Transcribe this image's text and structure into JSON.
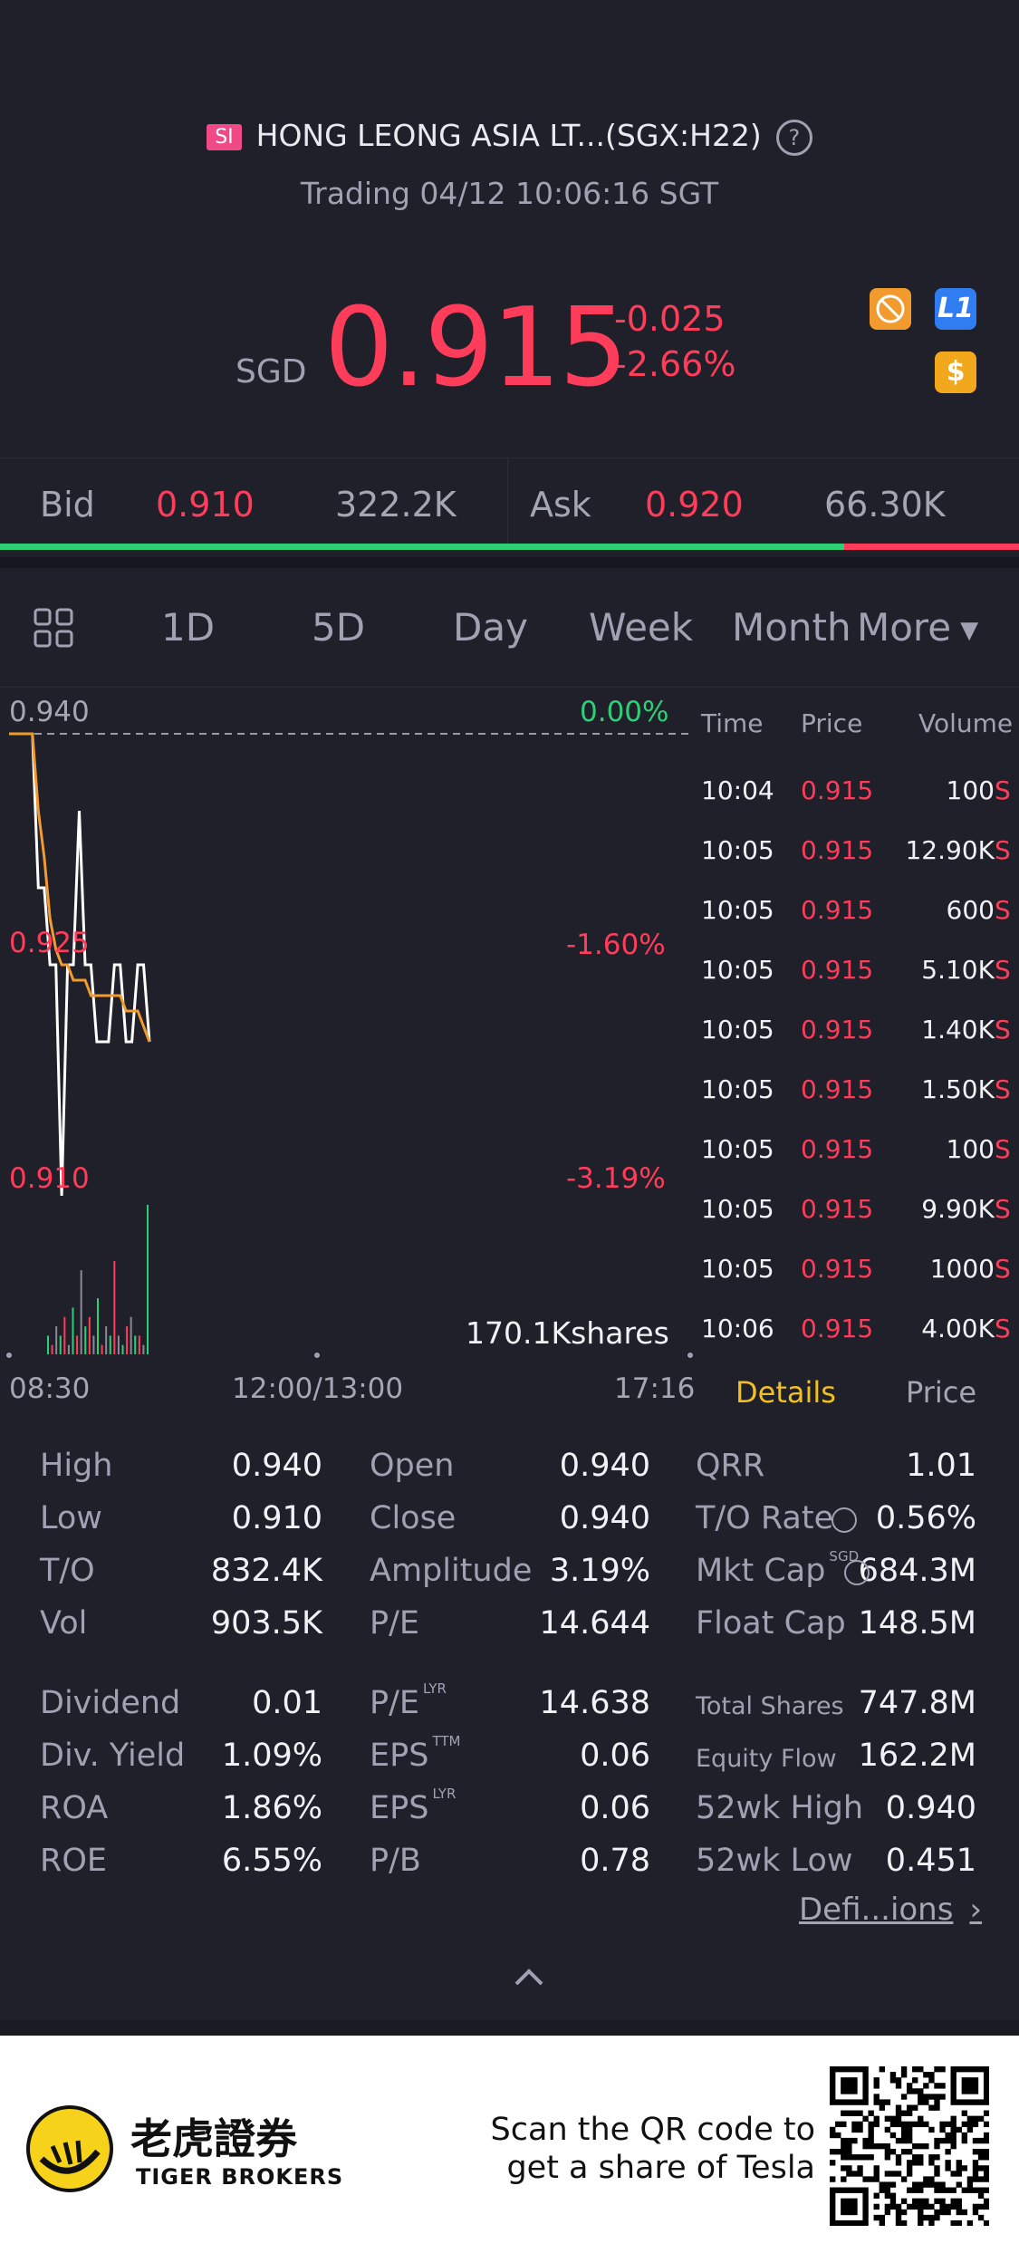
{
  "header": {
    "badge": "SI",
    "title": "HONG LEONG ASIA LT...(SGX:H22)",
    "help": "?",
    "status": "Trading 04/12 10:06:16 SGT"
  },
  "quote": {
    "currency": "SGD",
    "price": "0.915",
    "change": "-0.025",
    "change_pct": "-2.66%",
    "icons": [
      "no-short-icon",
      "level1-icon",
      "dollar-icon"
    ],
    "level_badge": "L1",
    "dollar_badge": "$"
  },
  "bidask": {
    "bid_label": "Bid",
    "bid_price": "0.910",
    "bid_size": "322.2K",
    "ask_label": "Ask",
    "ask_price": "0.920",
    "ask_size": "66.30K",
    "bid_fraction": 0.828
  },
  "tabs": {
    "grid_icon": "grid-icon",
    "items": [
      "1D",
      "5D",
      "Day",
      "Week",
      "Month"
    ],
    "active": "1D",
    "more": "More"
  },
  "chart_data": {
    "type": "line",
    "price_labels": [
      "0.940",
      "0.925",
      "0.910"
    ],
    "pct_labels": [
      "0.00%",
      "-1.60%",
      "-3.19%"
    ],
    "volume_label": "170.1Kshares",
    "time_labels": [
      "08:30",
      "12:00/13:00",
      "17:16"
    ],
    "series": [
      {
        "color": "#ffffff",
        "values": [
          0.94,
          0.94,
          0.94,
          0.94,
          0.94,
          0.93,
          0.93,
          0.925,
          0.925,
          0.91,
          0.925,
          0.925,
          0.935,
          0.925,
          0.925,
          0.92,
          0.92,
          0.92,
          0.925,
          0.925,
          0.92,
          0.92,
          0.925,
          0.925,
          0.92
        ]
      },
      {
        "color": "#f29a2e",
        "values": [
          0.94,
          0.94,
          0.94,
          0.94,
          0.94,
          0.935,
          0.932,
          0.928,
          0.926,
          0.925,
          0.925,
          0.924,
          0.924,
          0.924,
          0.923,
          0.923,
          0.923,
          0.923,
          0.923,
          0.923,
          0.922,
          0.922,
          0.922,
          0.921,
          0.92
        ]
      }
    ],
    "ylim": [
      0.91,
      0.94
    ],
    "volume_bars": [
      2,
      1,
      3,
      2,
      4,
      1,
      5,
      2,
      9,
      3,
      4,
      2,
      6,
      1,
      3,
      2,
      10,
      2,
      1,
      3,
      4,
      2,
      2,
      1,
      16
    ]
  },
  "trades": {
    "headers": [
      "Time",
      "Price",
      "Volume"
    ],
    "rows": [
      {
        "time": "10:04",
        "price": "0.915",
        "volume": "100",
        "flag": "S"
      },
      {
        "time": "10:05",
        "price": "0.915",
        "volume": "12.90K",
        "flag": "S"
      },
      {
        "time": "10:05",
        "price": "0.915",
        "volume": "600",
        "flag": "S"
      },
      {
        "time": "10:05",
        "price": "0.915",
        "volume": "5.10K",
        "flag": "S"
      },
      {
        "time": "10:05",
        "price": "0.915",
        "volume": "1.40K",
        "flag": "S"
      },
      {
        "time": "10:05",
        "price": "0.915",
        "volume": "1.50K",
        "flag": "S"
      },
      {
        "time": "10:05",
        "price": "0.915",
        "volume": "100",
        "flag": "S"
      },
      {
        "time": "10:05",
        "price": "0.915",
        "volume": "9.90K",
        "flag": "S"
      },
      {
        "time": "10:05",
        "price": "0.915",
        "volume": "1000",
        "flag": "S"
      },
      {
        "time": "10:06",
        "price": "0.915",
        "volume": "4.00K",
        "flag": "S"
      }
    ],
    "tab_details": "Details",
    "tab_price": "Price"
  },
  "stats": {
    "col1": [
      {
        "label": "High",
        "value": "0.940"
      },
      {
        "label": "Low",
        "value": "0.910"
      },
      {
        "label": "T/O",
        "value": "832.4K"
      },
      {
        "label": "Vol",
        "value": "903.5K"
      },
      {
        "label": "Dividend",
        "value": "0.01"
      },
      {
        "label": "Div. Yield",
        "value": "1.09%"
      },
      {
        "label": "ROA",
        "value": "1.86%"
      },
      {
        "label": "ROE",
        "value": "6.55%"
      }
    ],
    "col2": [
      {
        "label": "Open",
        "value": "0.940",
        "sup": ""
      },
      {
        "label": "Close",
        "value": "0.940",
        "sup": ""
      },
      {
        "label": "Amplitude",
        "value": "3.19%",
        "sup": ""
      },
      {
        "label": "P/E",
        "value": "14.644",
        "sup": ""
      },
      {
        "label": "P/E",
        "value": "14.638",
        "sup": "LYR"
      },
      {
        "label": "EPS",
        "value": "0.06",
        "sup": "TTM"
      },
      {
        "label": "EPS",
        "value": "0.06",
        "sup": "LYR"
      },
      {
        "label": "P/B",
        "value": "0.78",
        "sup": ""
      }
    ],
    "col3": [
      {
        "label": "QRR",
        "value": "1.01",
        "sup": ""
      },
      {
        "label": "T/O Rate",
        "value": "0.56%",
        "sup": ""
      },
      {
        "label": "Mkt Cap",
        "value": "684.3M",
        "sup": "SGD"
      },
      {
        "label": "Float Cap",
        "value": "148.5M",
        "sup": ""
      },
      {
        "label": "Total Shares",
        "value": "747.8M",
        "sup": ""
      },
      {
        "label": "Equity Flow",
        "value": "162.2M",
        "sup": ""
      },
      {
        "label": "52wk High",
        "value": "0.940",
        "sup": ""
      },
      {
        "label": "52wk Low",
        "value": "0.451",
        "sup": ""
      }
    ],
    "definitions": "Defi...ions"
  },
  "footer": {
    "logo_cn": "老虎證券",
    "logo_en": "TIGER BROKERS",
    "promo_line1": "Scan the QR code to",
    "promo_line2": "get a share of Tesla"
  }
}
